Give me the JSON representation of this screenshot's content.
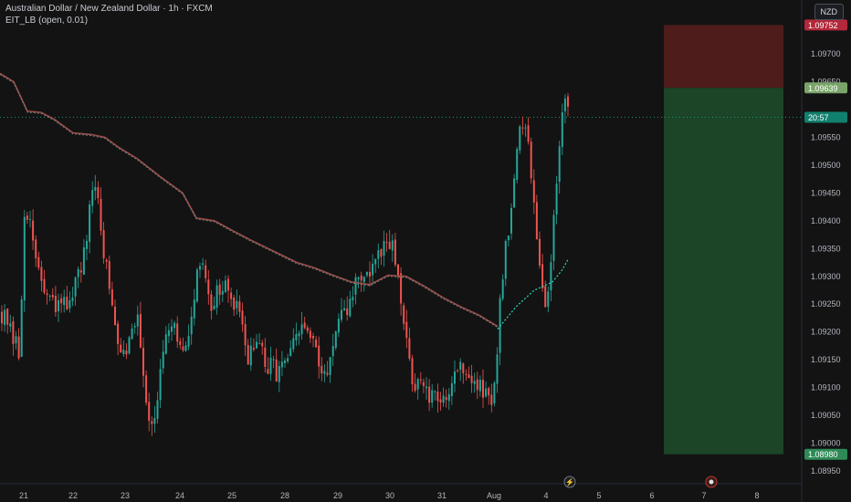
{
  "header": {
    "symbol_line": "Australian Dollar / New Zealand Dollar · 1h · FXCM",
    "indicator_line": "EIT_LB (open, 0.01)"
  },
  "currency": "NZD",
  "colors": {
    "background": "#131313",
    "up": "#26a69a",
    "down": "#ef5350",
    "stop_zone": "#5b1f1f",
    "target_zone": "#1e4a2a",
    "ma_line": "#9a4d4a",
    "signal_line": "#2bd9b8"
  },
  "chart_data": {
    "type": "candlestick",
    "y_axis_labels": [
      "1.09700",
      "1.09650",
      "1.09550",
      "1.09500",
      "1.09450",
      "1.09400",
      "1.09350",
      "1.09300",
      "1.09250",
      "1.09200",
      "1.09150",
      "1.09100",
      "1.09050",
      "1.09000",
      "1.08950"
    ],
    "ylim": [
      1.08927,
      1.09797
    ],
    "x_axis_labels": [
      "21",
      "22",
      "23",
      "24",
      "25",
      "28",
      "29",
      "30",
      "31",
      "Aug",
      "4",
      "5",
      "6",
      "7",
      "8"
    ],
    "price_tags": [
      {
        "label": "1.09752",
        "value": 1.09752,
        "color": "#b3283a"
      },
      {
        "label": "1.09639",
        "value": 1.09639,
        "color": "#7aa56a"
      },
      {
        "label": "20:57",
        "value": 1.09586,
        "color": "#12806e"
      },
      {
        "label": "1.08980",
        "value": 1.0898,
        "color": "#2e8b57"
      }
    ],
    "current_price": 1.09586,
    "position": {
      "stop": 1.09752,
      "entry": 1.09639,
      "target": 1.0898
    },
    "path": [
      [
        0,
        1.0924
      ],
      [
        14,
        1.0918
      ],
      [
        20,
        1.0916
      ],
      [
        27,
        1.0946
      ],
      [
        30,
        1.094
      ],
      [
        40,
        1.0932
      ],
      [
        50,
        1.0926
      ],
      [
        60,
        1.0924
      ],
      [
        70,
        1.0925
      ],
      [
        80,
        1.0928
      ],
      [
        90,
        1.0932
      ],
      [
        98,
        1.0942
      ],
      [
        104,
        1.0947
      ],
      [
        110,
        1.0938
      ],
      [
        120,
        1.0926
      ],
      [
        130,
        1.0918
      ],
      [
        140,
        1.0918
      ],
      [
        150,
        1.0924
      ],
      [
        160,
        1.0906
      ],
      [
        166,
        1.0904
      ],
      [
        172,
        1.0909
      ],
      [
        180,
        1.0918
      ],
      [
        190,
        1.092
      ],
      [
        200,
        1.0915
      ],
      [
        210,
        1.0925
      ],
      [
        220,
        1.0934
      ],
      [
        230,
        1.0925
      ],
      [
        240,
        1.0928
      ],
      [
        250,
        1.0927
      ],
      [
        260,
        1.0923
      ],
      [
        270,
        1.0916
      ],
      [
        280,
        1.0918
      ],
      [
        290,
        1.0914
      ],
      [
        300,
        1.0913
      ],
      [
        310,
        1.0914
      ],
      [
        320,
        1.0917
      ],
      [
        330,
        1.0921
      ],
      [
        340,
        1.0919
      ],
      [
        350,
        1.0912
      ],
      [
        360,
        1.0915
      ],
      [
        370,
        1.0921
      ],
      [
        380,
        1.0924
      ],
      [
        390,
        1.093
      ],
      [
        400,
        1.093
      ],
      [
        410,
        1.0932
      ],
      [
        420,
        1.0935
      ],
      [
        430,
        1.0935
      ],
      [
        440,
        1.0922
      ],
      [
        450,
        1.0912
      ],
      [
        460,
        1.091
      ],
      [
        470,
        1.0908
      ],
      [
        480,
        1.0907
      ],
      [
        490,
        1.091
      ],
      [
        500,
        1.0914
      ],
      [
        510,
        1.0913
      ],
      [
        520,
        1.091
      ],
      [
        530,
        1.0909
      ],
      [
        540,
        1.0908
      ],
      [
        545,
        1.0922
      ],
      [
        552,
        1.0935
      ],
      [
        560,
        1.0944
      ],
      [
        567,
        1.0955
      ],
      [
        575,
        1.0957
      ],
      [
        585,
        1.0942
      ],
      [
        593,
        1.0928
      ],
      [
        598,
        1.0924
      ],
      [
        604,
        1.0937
      ],
      [
        610,
        1.0952
      ],
      [
        616,
        1.0961
      ],
      [
        622,
        1.0958
      ]
    ],
    "ma_path": [
      [
        0,
        1.09665
      ],
      [
        15,
        1.0965
      ],
      [
        30,
        1.09597
      ],
      [
        45,
        1.09595
      ],
      [
        60,
        1.09582
      ],
      [
        80,
        1.09558
      ],
      [
        100,
        1.09555
      ],
      [
        115,
        1.0955
      ],
      [
        130,
        1.09532
      ],
      [
        150,
        1.09512
      ],
      [
        175,
        1.0948
      ],
      [
        200,
        1.0945
      ],
      [
        215,
        1.09405
      ],
      [
        235,
        1.094
      ],
      [
        255,
        1.09382
      ],
      [
        275,
        1.09365
      ],
      [
        300,
        1.09345
      ],
      [
        325,
        1.09325
      ],
      [
        345,
        1.09315
      ],
      [
        365,
        1.09302
      ],
      [
        385,
        1.0929
      ],
      [
        405,
        1.09285
      ],
      [
        425,
        1.09302
      ],
      [
        445,
        1.093
      ],
      [
        465,
        1.09282
      ],
      [
        485,
        1.09262
      ],
      [
        505,
        1.09245
      ],
      [
        525,
        1.0923
      ],
      [
        545,
        1.0921
      ]
    ],
    "signal_path": [
      [
        545,
        1.09205
      ],
      [
        555,
        1.09225
      ],
      [
        565,
        1.09245
      ],
      [
        575,
        1.0926
      ],
      [
        585,
        1.09275
      ],
      [
        595,
        1.09282
      ],
      [
        605,
        1.0929
      ],
      [
        615,
        1.0931
      ],
      [
        622,
        1.0933
      ]
    ]
  }
}
